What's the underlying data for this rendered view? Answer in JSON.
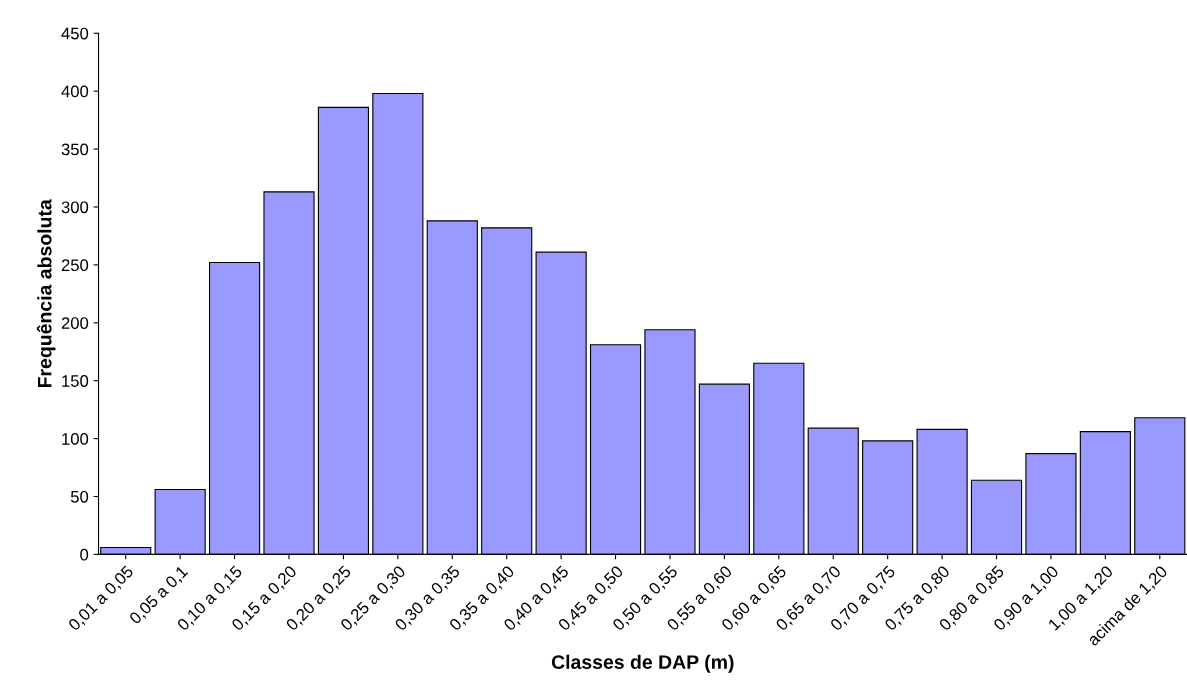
{
  "chart_data": {
    "type": "bar",
    "xlabel": "Classes de DAP (m)",
    "ylabel": "Frequência absoluta",
    "categories": [
      "0,01 a 0,05",
      "0,05 a 0,1",
      "0,10 a 0,15",
      "0,15 a 0,20",
      "0,20 a 0,25",
      "0,25 a 0,30",
      "0,30 a 0,35",
      "0,35 a 0,40",
      "0,40 a 0,45",
      "0,45 a 0,50",
      "0,50 a 0,55",
      "0,55 a 0,60",
      "0,60 a 0,65",
      "0,65 a 0,70",
      "0,70 a 0,75",
      "0,75 a 0,80",
      "0,80 a 0,85",
      "0,90 a 1,00",
      "1,00 a 1,20",
      "acima de 1,20"
    ],
    "values": [
      6,
      56,
      252,
      313,
      386,
      398,
      288,
      282,
      261,
      181,
      194,
      147,
      165,
      109,
      98,
      108,
      64,
      87,
      106,
      118
    ],
    "color": "#9999ff",
    "ylim": [
      0,
      450
    ],
    "yticks": [
      0,
      50,
      100,
      150,
      200,
      250,
      300,
      350,
      400,
      450
    ],
    "grid": false,
    "legend": false
  }
}
